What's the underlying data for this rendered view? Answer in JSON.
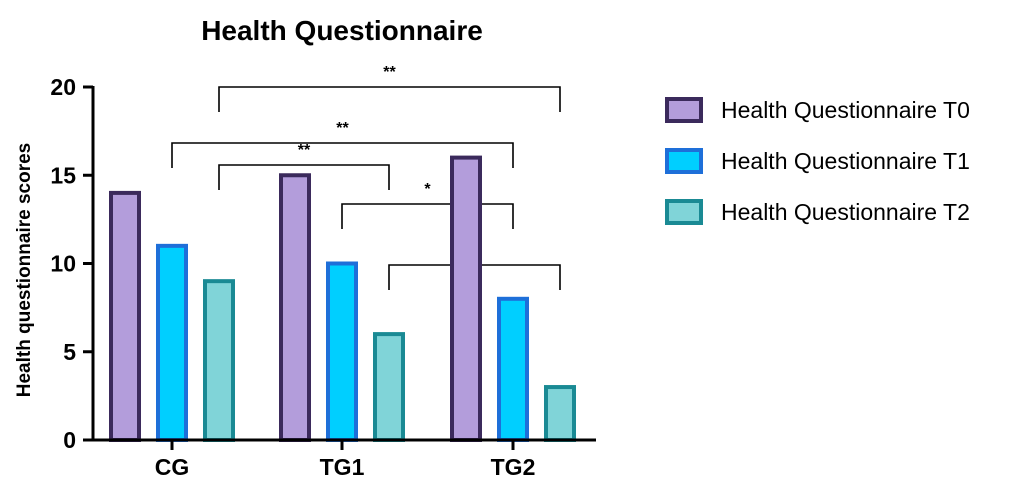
{
  "chart_data": {
    "type": "bar",
    "title": "Health Questionnaire",
    "xlabel": "",
    "ylabel": "Health questionnaire scores",
    "ylim": [
      0,
      20
    ],
    "yticks": [
      0,
      5,
      10,
      15,
      20
    ],
    "categories": [
      "CG",
      "TG1",
      "TG2"
    ],
    "series": [
      {
        "name": "Health Questionnaire T0",
        "values": [
          14,
          15,
          16
        ],
        "fill": "#b39ddb",
        "stroke": "#3b2a5c"
      },
      {
        "name": "Health Questionnaire T1",
        "values": [
          11,
          10,
          8
        ],
        "fill": "#00cfff",
        "stroke": "#1e6fd9"
      },
      {
        "name": "Health Questionnaire T2",
        "values": [
          9,
          6,
          3
        ],
        "fill": "#80d4d8",
        "stroke": "#1a8a94"
      }
    ],
    "legend_position": "right",
    "grid": false,
    "significance": [
      {
        "label": "**",
        "from": {
          "category": "CG",
          "series": 2
        },
        "to": {
          "category": "TG2",
          "series": 2
        }
      },
      {
        "label": "**",
        "from": {
          "category": "CG",
          "series": 1
        },
        "to": {
          "category": "TG2",
          "series": 1
        }
      },
      {
        "label": "**",
        "from": {
          "category": "CG",
          "series": 2
        },
        "to": {
          "category": "TG1",
          "series": 2
        }
      },
      {
        "label": "*",
        "from": {
          "category": "TG1",
          "series": 1
        },
        "to": {
          "category": "TG2",
          "series": 1
        }
      },
      {
        "label": "**",
        "from": {
          "category": "TG1",
          "series": 2
        },
        "to": {
          "category": "TG2",
          "series": 2
        }
      }
    ]
  }
}
